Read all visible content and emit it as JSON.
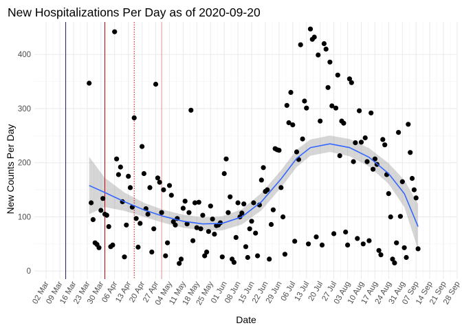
{
  "chart_data": {
    "type": "scatter",
    "title": "New Hospitalizations Per Day as of 2020-09-20",
    "xlabel": "Date",
    "ylabel": "New Counts Per Day",
    "x_range": [
      "2020-02-25",
      "2020-09-28"
    ],
    "ylim": [
      -15,
      460
    ],
    "y_ticks": [
      0,
      100,
      200,
      300,
      400
    ],
    "x_ticks": [
      {
        "date": "2020-03-02",
        "label": "02 Mar"
      },
      {
        "date": "2020-03-09",
        "label": "09 Mar"
      },
      {
        "date": "2020-03-16",
        "label": "16 Mar"
      },
      {
        "date": "2020-03-23",
        "label": "23 Mar"
      },
      {
        "date": "2020-03-30",
        "label": "30 Mar"
      },
      {
        "date": "2020-04-06",
        "label": "06 Apr"
      },
      {
        "date": "2020-04-13",
        "label": "13 Apr"
      },
      {
        "date": "2020-04-20",
        "label": "20 Apr"
      },
      {
        "date": "2020-04-27",
        "label": "27 Apr"
      },
      {
        "date": "2020-05-04",
        "label": "04 May"
      },
      {
        "date": "2020-05-11",
        "label": "11 May"
      },
      {
        "date": "2020-05-18",
        "label": "18 May"
      },
      {
        "date": "2020-05-25",
        "label": "25 May"
      },
      {
        "date": "2020-06-01",
        "label": "01 Jun"
      },
      {
        "date": "2020-06-08",
        "label": "08 Jun"
      },
      {
        "date": "2020-06-15",
        "label": "15 Jun"
      },
      {
        "date": "2020-06-22",
        "label": "22 Jun"
      },
      {
        "date": "2020-06-29",
        "label": "29 Jun"
      },
      {
        "date": "2020-07-06",
        "label": "06 Jul"
      },
      {
        "date": "2020-07-13",
        "label": "13 Jul"
      },
      {
        "date": "2020-07-20",
        "label": "20 Jul"
      },
      {
        "date": "2020-07-27",
        "label": "27 Jul"
      },
      {
        "date": "2020-08-03",
        "label": "03 Aug"
      },
      {
        "date": "2020-08-10",
        "label": "10 Aug"
      },
      {
        "date": "2020-08-17",
        "label": "17 Aug"
      },
      {
        "date": "2020-08-24",
        "label": "24 Aug"
      },
      {
        "date": "2020-08-31",
        "label": "31 Aug"
      },
      {
        "date": "2020-09-07",
        "label": "07 Sep"
      },
      {
        "date": "2020-09-14",
        "label": "14 Sep"
      },
      {
        "date": "2020-09-21",
        "label": "21 Sep"
      },
      {
        "date": "2020-09-28",
        "label": "28 Sep"
      }
    ],
    "grid": true,
    "vertical_lines": [
      {
        "date": "2020-03-12",
        "color": "#191970",
        "style": "solid"
      },
      {
        "date": "2020-04-01",
        "color": "#cc0000",
        "style": "solid"
      },
      {
        "date": "2020-04-16",
        "color": "#cc0000",
        "style": "dotted"
      },
      {
        "date": "2020-04-30",
        "color": "#e89090",
        "style": "solid"
      }
    ],
    "point_color": "#000000",
    "smooth_color": "#3366ff",
    "band_color": "#999999",
    "points": [
      {
        "x": "2020-03-24",
        "y": 347
      },
      {
        "x": "2020-03-25",
        "y": 126
      },
      {
        "x": "2020-03-26",
        "y": 95
      },
      {
        "x": "2020-03-27",
        "y": 52
      },
      {
        "x": "2020-03-28",
        "y": 49
      },
      {
        "x": "2020-03-29",
        "y": 43
      },
      {
        "x": "2020-03-30",
        "y": 112
      },
      {
        "x": "2020-03-31",
        "y": 134
      },
      {
        "x": "2020-04-01",
        "y": 105
      },
      {
        "x": "2020-04-02",
        "y": 103
      },
      {
        "x": "2020-04-03",
        "y": 82
      },
      {
        "x": "2020-04-04",
        "y": 45
      },
      {
        "x": "2020-04-05",
        "y": 48
      },
      {
        "x": "2020-04-06",
        "y": 442
      },
      {
        "x": "2020-04-07",
        "y": 207
      },
      {
        "x": "2020-04-08",
        "y": 178
      },
      {
        "x": "2020-04-09",
        "y": 192
      },
      {
        "x": "2020-04-10",
        "y": 128
      },
      {
        "x": "2020-04-11",
        "y": 26
      },
      {
        "x": "2020-04-12",
        "y": 85
      },
      {
        "x": "2020-04-13",
        "y": 175
      },
      {
        "x": "2020-04-14",
        "y": 154
      },
      {
        "x": "2020-04-15",
        "y": 118
      },
      {
        "x": "2020-04-16",
        "y": 283
      },
      {
        "x": "2020-04-17",
        "y": 97
      },
      {
        "x": "2020-04-18",
        "y": 44
      },
      {
        "x": "2020-04-19",
        "y": 88
      },
      {
        "x": "2020-04-20",
        "y": 230
      },
      {
        "x": "2020-04-21",
        "y": 180
      },
      {
        "x": "2020-04-22",
        "y": 115
      },
      {
        "x": "2020-04-23",
        "y": 105
      },
      {
        "x": "2020-04-24",
        "y": 154
      },
      {
        "x": "2020-04-25",
        "y": 35
      },
      {
        "x": "2020-04-26",
        "y": 78
      },
      {
        "x": "2020-04-27",
        "y": 345
      },
      {
        "x": "2020-04-28",
        "y": 172
      },
      {
        "x": "2020-04-29",
        "y": 164
      },
      {
        "x": "2020-04-30",
        "y": 108
      },
      {
        "x": "2020-05-01",
        "y": 150
      },
      {
        "x": "2020-05-02",
        "y": 28
      },
      {
        "x": "2020-05-03",
        "y": 52
      },
      {
        "x": "2020-05-04",
        "y": 158
      },
      {
        "x": "2020-05-05",
        "y": 140
      },
      {
        "x": "2020-05-06",
        "y": 91
      },
      {
        "x": "2020-05-07",
        "y": 85
      },
      {
        "x": "2020-05-08",
        "y": 97
      },
      {
        "x": "2020-05-09",
        "y": 14
      },
      {
        "x": "2020-05-10",
        "y": 22
      },
      {
        "x": "2020-05-11",
        "y": 116
      },
      {
        "x": "2020-05-12",
        "y": 129
      },
      {
        "x": "2020-05-13",
        "y": 87
      },
      {
        "x": "2020-05-14",
        "y": 108
      },
      {
        "x": "2020-05-15",
        "y": 297
      },
      {
        "x": "2020-05-16",
        "y": 56
      },
      {
        "x": "2020-05-17",
        "y": 126
      },
      {
        "x": "2020-05-18",
        "y": 80
      },
      {
        "x": "2020-05-19",
        "y": 127
      },
      {
        "x": "2020-05-20",
        "y": 78
      },
      {
        "x": "2020-05-21",
        "y": 103
      },
      {
        "x": "2020-05-22",
        "y": 28
      },
      {
        "x": "2020-05-23",
        "y": 35
      },
      {
        "x": "2020-05-24",
        "y": 73
      },
      {
        "x": "2020-05-25",
        "y": 120
      },
      {
        "x": "2020-05-26",
        "y": 96
      },
      {
        "x": "2020-05-27",
        "y": 68
      },
      {
        "x": "2020-05-28",
        "y": 84
      },
      {
        "x": "2020-05-29",
        "y": 85
      },
      {
        "x": "2020-05-30",
        "y": 89
      },
      {
        "x": "2020-05-31",
        "y": 26
      },
      {
        "x": "2020-06-01",
        "y": 180
      },
      {
        "x": "2020-06-02",
        "y": 207
      },
      {
        "x": "2020-06-03",
        "y": 108
      },
      {
        "x": "2020-06-04",
        "y": 137
      },
      {
        "x": "2020-06-05",
        "y": 22
      },
      {
        "x": "2020-06-06",
        "y": 16
      },
      {
        "x": "2020-06-07",
        "y": 62
      },
      {
        "x": "2020-06-08",
        "y": 126
      },
      {
        "x": "2020-06-09",
        "y": 100
      },
      {
        "x": "2020-06-10",
        "y": 107
      },
      {
        "x": "2020-06-11",
        "y": 124
      },
      {
        "x": "2020-06-12",
        "y": 45
      },
      {
        "x": "2020-06-13",
        "y": 25
      },
      {
        "x": "2020-06-14",
        "y": 78
      },
      {
        "x": "2020-06-15",
        "y": 92
      },
      {
        "x": "2020-06-16",
        "y": 126
      },
      {
        "x": "2020-06-17",
        "y": 70
      },
      {
        "x": "2020-06-18",
        "y": 28
      },
      {
        "x": "2020-06-19",
        "y": 122
      },
      {
        "x": "2020-06-20",
        "y": 168
      },
      {
        "x": "2020-06-21",
        "y": 191
      },
      {
        "x": "2020-06-22",
        "y": 147
      },
      {
        "x": "2020-06-23",
        "y": 150
      },
      {
        "x": "2020-06-24",
        "y": 22
      },
      {
        "x": "2020-06-25",
        "y": 86
      },
      {
        "x": "2020-06-26",
        "y": 113
      },
      {
        "x": "2020-06-27",
        "y": 226
      },
      {
        "x": "2020-06-28",
        "y": 224
      },
      {
        "x": "2020-06-29",
        "y": 223
      },
      {
        "x": "2020-06-30",
        "y": 154
      },
      {
        "x": "2020-07-01",
        "y": 100
      },
      {
        "x": "2020-07-02",
        "y": 31
      },
      {
        "x": "2020-07-03",
        "y": 306
      },
      {
        "x": "2020-07-04",
        "y": 274
      },
      {
        "x": "2020-07-05",
        "y": 330
      },
      {
        "x": "2020-07-06",
        "y": 270
      },
      {
        "x": "2020-07-07",
        "y": 55
      },
      {
        "x": "2020-07-08",
        "y": 220
      },
      {
        "x": "2020-07-09",
        "y": 206
      },
      {
        "x": "2020-07-10",
        "y": 418
      },
      {
        "x": "2020-07-11",
        "y": 244
      },
      {
        "x": "2020-07-12",
        "y": 314
      },
      {
        "x": "2020-07-13",
        "y": 301
      },
      {
        "x": "2020-07-14",
        "y": 50
      },
      {
        "x": "2020-07-15",
        "y": 447
      },
      {
        "x": "2020-07-16",
        "y": 428
      },
      {
        "x": "2020-07-17",
        "y": 432
      },
      {
        "x": "2020-07-18",
        "y": 63
      },
      {
        "x": "2020-07-19",
        "y": 399
      },
      {
        "x": "2020-07-20",
        "y": 277
      },
      {
        "x": "2020-07-21",
        "y": 48
      },
      {
        "x": "2020-07-22",
        "y": 420
      },
      {
        "x": "2020-07-23",
        "y": 410
      },
      {
        "x": "2020-07-24",
        "y": 339
      },
      {
        "x": "2020-07-25",
        "y": 386
      },
      {
        "x": "2020-07-26",
        "y": 305
      },
      {
        "x": "2020-07-27",
        "y": 69
      },
      {
        "x": "2020-07-28",
        "y": 301
      },
      {
        "x": "2020-07-29",
        "y": 362
      },
      {
        "x": "2020-07-30",
        "y": 213
      },
      {
        "x": "2020-07-31",
        "y": 277
      },
      {
        "x": "2020-08-01",
        "y": 273
      },
      {
        "x": "2020-08-02",
        "y": 72
      },
      {
        "x": "2020-08-03",
        "y": 48
      },
      {
        "x": "2020-08-04",
        "y": 355
      },
      {
        "x": "2020-08-05",
        "y": 348
      },
      {
        "x": "2020-08-06",
        "y": 202
      },
      {
        "x": "2020-08-07",
        "y": 237
      },
      {
        "x": "2020-08-08",
        "y": 60
      },
      {
        "x": "2020-08-09",
        "y": 296
      },
      {
        "x": "2020-08-10",
        "y": 238
      },
      {
        "x": "2020-08-11",
        "y": 50
      },
      {
        "x": "2020-08-12",
        "y": 246
      },
      {
        "x": "2020-08-13",
        "y": 202
      },
      {
        "x": "2020-08-14",
        "y": 56
      },
      {
        "x": "2020-08-15",
        "y": 292
      },
      {
        "x": "2020-08-16",
        "y": 188
      },
      {
        "x": "2020-08-17",
        "y": 207
      },
      {
        "x": "2020-08-18",
        "y": 197
      },
      {
        "x": "2020-08-19",
        "y": 38
      },
      {
        "x": "2020-08-20",
        "y": 30
      },
      {
        "x": "2020-08-21",
        "y": 243
      },
      {
        "x": "2020-08-22",
        "y": 233
      },
      {
        "x": "2020-08-23",
        "y": 178
      },
      {
        "x": "2020-08-24",
        "y": 143
      },
      {
        "x": "2020-08-25",
        "y": 100
      },
      {
        "x": "2020-08-26",
        "y": 22
      },
      {
        "x": "2020-08-27",
        "y": 15
      },
      {
        "x": "2020-08-28",
        "y": 52
      },
      {
        "x": "2020-08-29",
        "y": 256
      },
      {
        "x": "2020-08-30",
        "y": 101
      },
      {
        "x": "2020-08-31",
        "y": 165
      },
      {
        "x": "2020-09-01",
        "y": 43
      },
      {
        "x": "2020-09-02",
        "y": 25
      },
      {
        "x": "2020-09-03",
        "y": 271
      },
      {
        "x": "2020-09-04",
        "y": 219
      },
      {
        "x": "2020-09-05",
        "y": 171
      },
      {
        "x": "2020-09-06",
        "y": 150
      },
      {
        "x": "2020-09-07",
        "y": 135
      },
      {
        "x": "2020-09-08",
        "y": 41
      }
    ],
    "smooth": [
      {
        "x": "2020-03-24",
        "y": 158,
        "lo": 105,
        "hi": 211
      },
      {
        "x": "2020-04-01",
        "y": 145,
        "lo": 118,
        "hi": 172
      },
      {
        "x": "2020-04-11",
        "y": 128,
        "lo": 111,
        "hi": 145
      },
      {
        "x": "2020-04-21",
        "y": 113,
        "lo": 100,
        "hi": 126
      },
      {
        "x": "2020-05-01",
        "y": 101,
        "lo": 89,
        "hi": 113
      },
      {
        "x": "2020-05-11",
        "y": 92,
        "lo": 80,
        "hi": 104
      },
      {
        "x": "2020-05-21",
        "y": 87,
        "lo": 75,
        "hi": 99
      },
      {
        "x": "2020-05-31",
        "y": 88,
        "lo": 75,
        "hi": 101
      },
      {
        "x": "2020-06-10",
        "y": 100,
        "lo": 86,
        "hi": 114
      },
      {
        "x": "2020-06-20",
        "y": 128,
        "lo": 112,
        "hi": 144
      },
      {
        "x": "2020-06-30",
        "y": 170,
        "lo": 154,
        "hi": 186
      },
      {
        "x": "2020-07-08",
        "y": 208,
        "lo": 192,
        "hi": 224
      },
      {
        "x": "2020-07-15",
        "y": 228,
        "lo": 213,
        "hi": 243
      },
      {
        "x": "2020-07-25",
        "y": 235,
        "lo": 220,
        "hi": 250
      },
      {
        "x": "2020-08-04",
        "y": 228,
        "lo": 212,
        "hi": 244
      },
      {
        "x": "2020-08-14",
        "y": 210,
        "lo": 193,
        "hi": 227
      },
      {
        "x": "2020-08-24",
        "y": 180,
        "lo": 161,
        "hi": 199
      },
      {
        "x": "2020-09-01",
        "y": 143,
        "lo": 118,
        "hi": 168
      },
      {
        "x": "2020-09-08",
        "y": 82,
        "lo": 40,
        "hi": 124
      }
    ]
  }
}
